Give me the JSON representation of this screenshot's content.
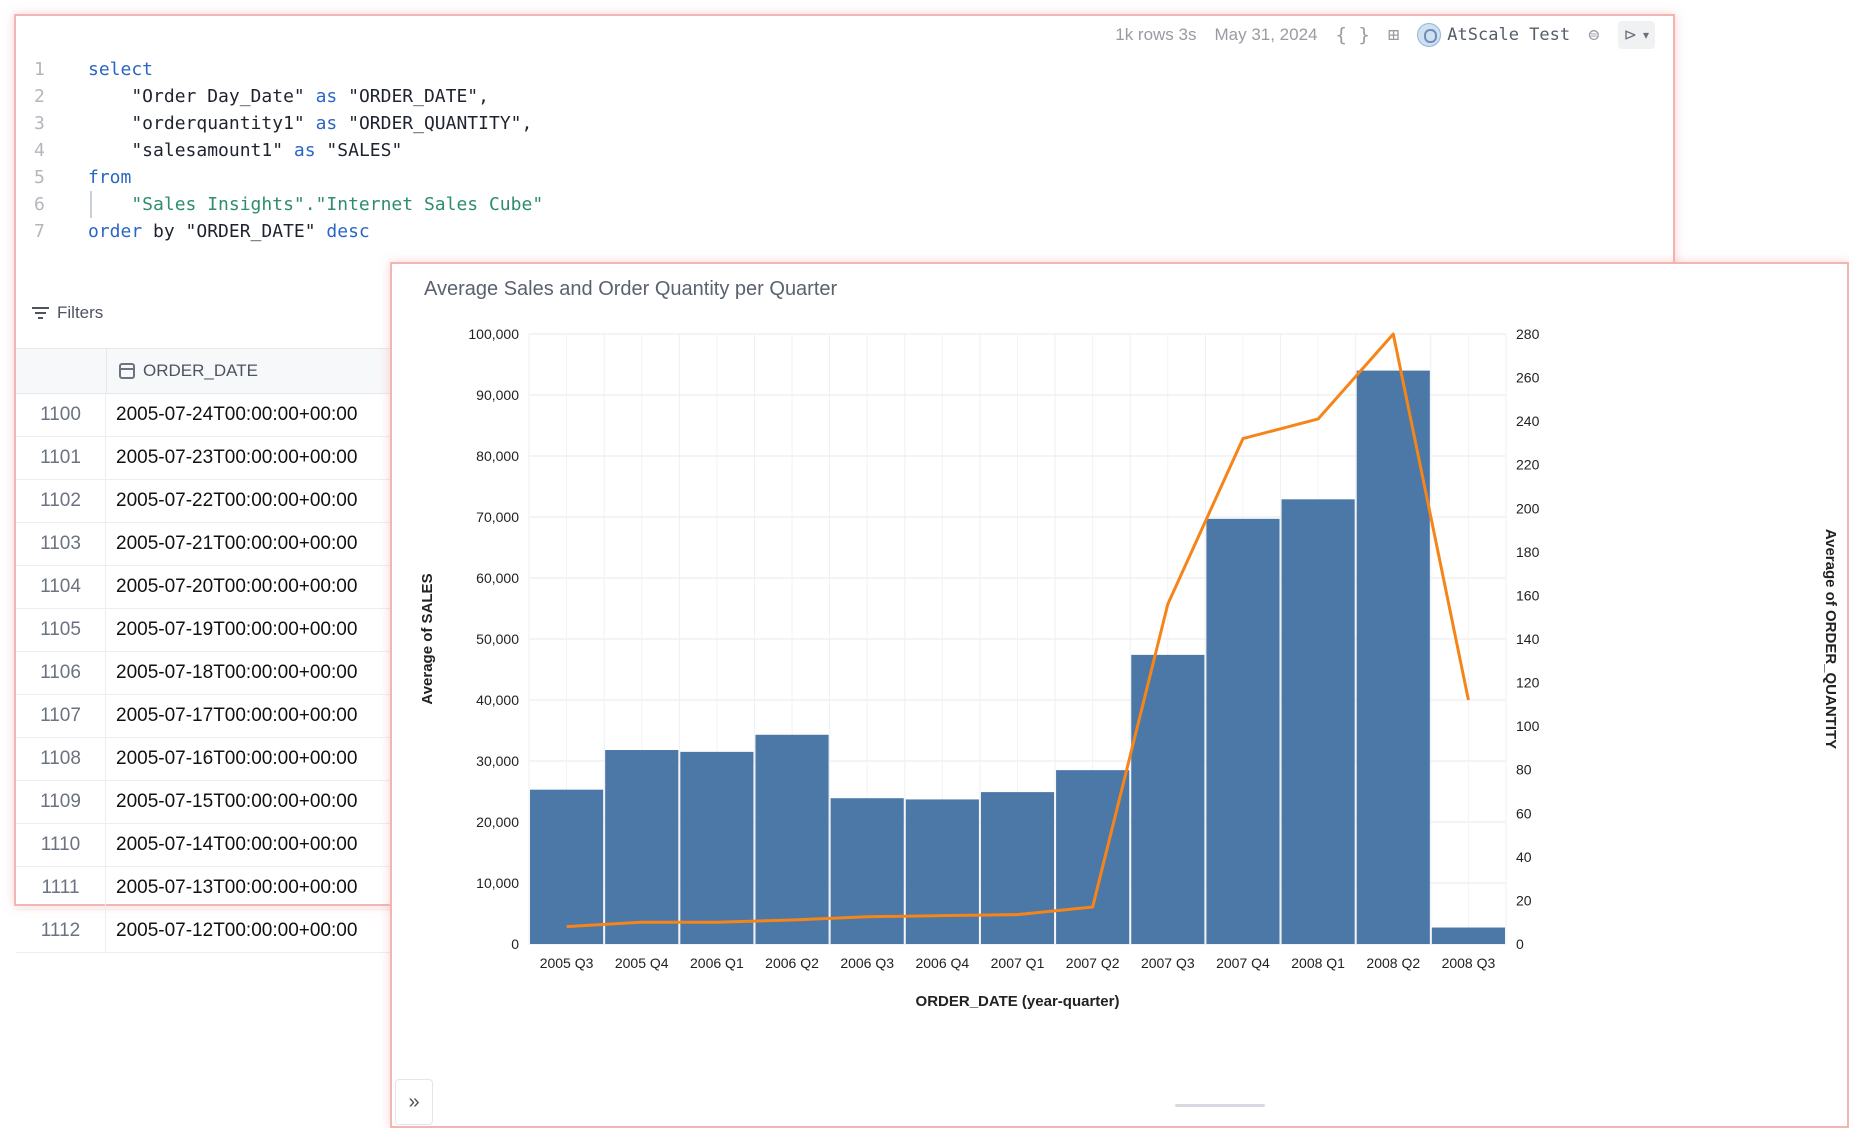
{
  "toolbar": {
    "rows_time": "1k rows 3s",
    "date": "May 31, 2024",
    "braces_icon": "{ }",
    "connection_name": "AtScale Test"
  },
  "code_lines": [
    {
      "n": "1",
      "parts": [
        {
          "t": "select",
          "c": "kw"
        }
      ]
    },
    {
      "n": "2",
      "parts": [
        {
          "t": "    \"Order Day_Date\" ",
          "c": "str"
        },
        {
          "t": "as",
          "c": "kw"
        },
        {
          "t": " \"ORDER_DATE\",",
          "c": "str"
        }
      ]
    },
    {
      "n": "3",
      "parts": [
        {
          "t": "    \"orderquantity1\" ",
          "c": "str"
        },
        {
          "t": "as",
          "c": "kw"
        },
        {
          "t": " \"ORDER_QUANTITY\",",
          "c": "str"
        }
      ]
    },
    {
      "n": "4",
      "parts": [
        {
          "t": "    \"salesamount1\" ",
          "c": "str"
        },
        {
          "t": "as",
          "c": "kw"
        },
        {
          "t": " \"SALES\"",
          "c": "str"
        }
      ]
    },
    {
      "n": "5",
      "parts": [
        {
          "t": "from",
          "c": "kw"
        }
      ]
    },
    {
      "n": "6",
      "parts": [
        {
          "t": "    \"Sales Insights\".\"Internet Sales Cube\"",
          "c": "grn"
        }
      ]
    },
    {
      "n": "7",
      "parts": [
        {
          "t": "order",
          "c": "kw"
        },
        {
          "t": " by \"ORDER_DATE\" ",
          "c": "str"
        },
        {
          "t": "desc",
          "c": "kw"
        }
      ]
    }
  ],
  "filters_label": "Filters",
  "table": {
    "column": "ORDER_DATE",
    "rows": [
      {
        "idx": "1100",
        "val": "2005-07-24T00:00:00+00:00"
      },
      {
        "idx": "1101",
        "val": "2005-07-23T00:00:00+00:00"
      },
      {
        "idx": "1102",
        "val": "2005-07-22T00:00:00+00:00"
      },
      {
        "idx": "1103",
        "val": "2005-07-21T00:00:00+00:00"
      },
      {
        "idx": "1104",
        "val": "2005-07-20T00:00:00+00:00"
      },
      {
        "idx": "1105",
        "val": "2005-07-19T00:00:00+00:00"
      },
      {
        "idx": "1106",
        "val": "2005-07-18T00:00:00+00:00"
      },
      {
        "idx": "1107",
        "val": "2005-07-17T00:00:00+00:00"
      },
      {
        "idx": "1108",
        "val": "2005-07-16T00:00:00+00:00"
      },
      {
        "idx": "1109",
        "val": "2005-07-15T00:00:00+00:00"
      },
      {
        "idx": "1110",
        "val": "2005-07-14T00:00:00+00:00"
      },
      {
        "idx": "1111",
        "val": "2005-07-13T00:00:00+00:00"
      },
      {
        "idx": "1112",
        "val": "2005-07-12T00:00:00+00:00"
      }
    ]
  },
  "colors": {
    "bar": "#4c78a8",
    "line": "#f58518",
    "panel_border": "#f3b4b4"
  },
  "chart_data": {
    "type": "bar",
    "title": "Average Sales and Order Quantity per Quarter",
    "xlabel": "ORDER_DATE (year-quarter)",
    "ylabel": "Average of SALES",
    "y2label": "Average of ORDER_QUANTITY",
    "categories": [
      "2005 Q3",
      "2005 Q4",
      "2006 Q1",
      "2006 Q2",
      "2006 Q3",
      "2006 Q4",
      "2007 Q1",
      "2007 Q2",
      "2007 Q3",
      "2007 Q4",
      "2008 Q1",
      "2008 Q2",
      "2008 Q3"
    ],
    "ylim": [
      0,
      100000
    ],
    "y2lim": [
      0,
      280
    ],
    "yticks": [
      "0",
      "10,000",
      "20,000",
      "30,000",
      "40,000",
      "50,000",
      "60,000",
      "70,000",
      "80,000",
      "90,000",
      "100,000"
    ],
    "y2ticks": [
      "0",
      "20",
      "40",
      "60",
      "80",
      "100",
      "120",
      "140",
      "160",
      "180",
      "200",
      "220",
      "240",
      "260",
      "280"
    ],
    "series": [
      {
        "name": "SALES",
        "kind": "bar",
        "axis": "left",
        "values": [
          25300,
          31800,
          31500,
          34300,
          23900,
          23700,
          24900,
          28500,
          47400,
          69700,
          72900,
          94000,
          2700
        ]
      },
      {
        "name": "ORDER_QUANTITY",
        "kind": "line",
        "axis": "right",
        "values": [
          8,
          10,
          10,
          11,
          12.5,
          13,
          13.5,
          17,
          156,
          232,
          241,
          280,
          112
        ]
      }
    ],
    "grid": true
  }
}
